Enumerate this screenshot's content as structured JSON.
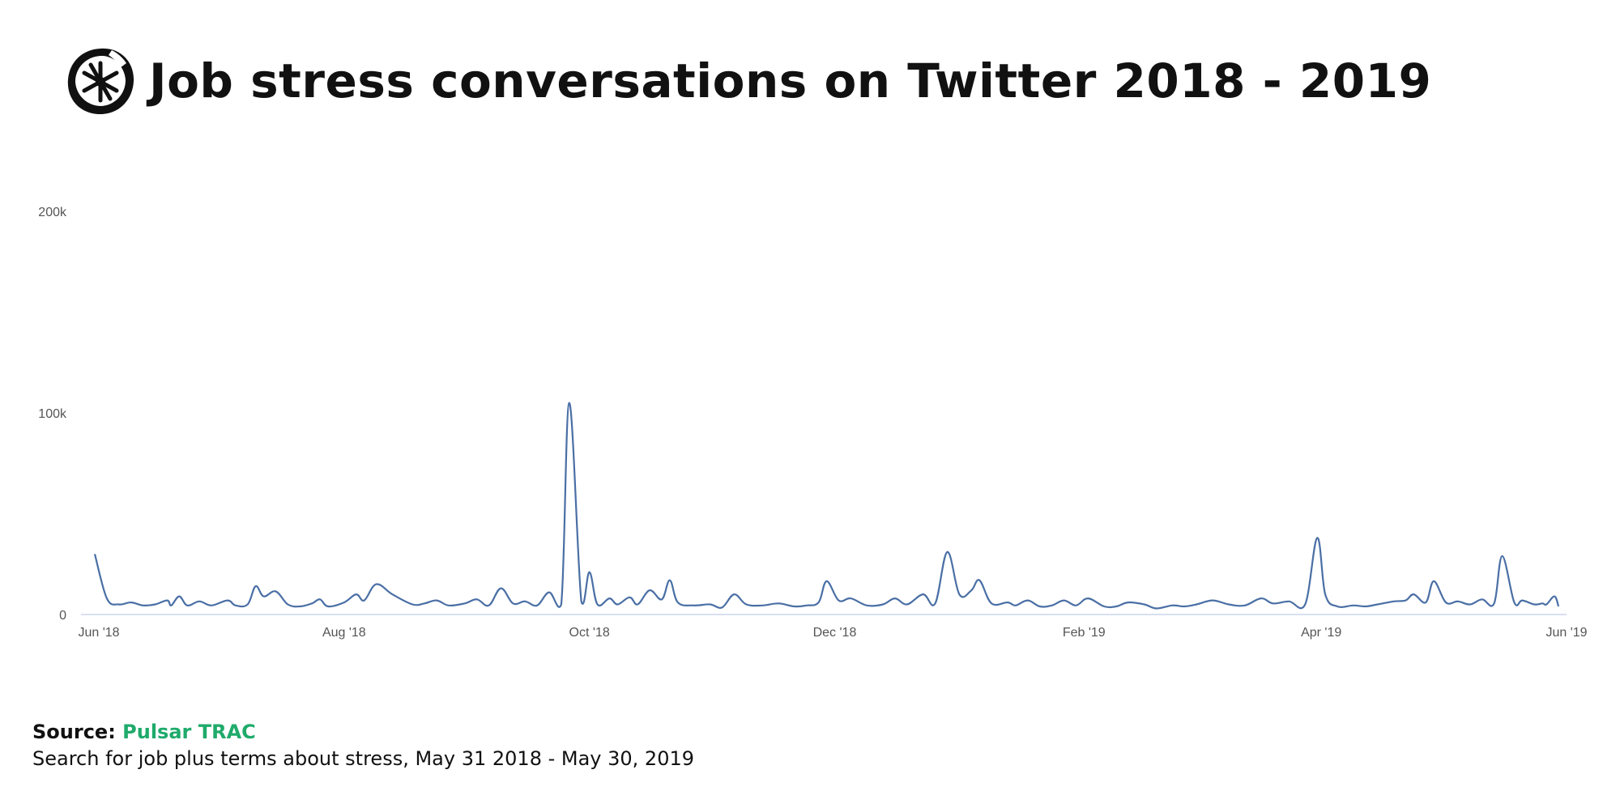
{
  "header": {
    "title": "Job stress conversations on Twitter 2018 - 2019",
    "logo_icon": "asterisk-circle-logo-icon"
  },
  "chart_data": {
    "type": "line",
    "title": "Job stress conversations on Twitter 2018 - 2019",
    "xlabel": "",
    "ylabel": "",
    "y_ticks": [
      "0",
      "100k",
      "200k"
    ],
    "x_ticks": [
      "Jun '18",
      "Aug '18",
      "Oct '18",
      "Dec '18",
      "Feb '19",
      "Apr '19",
      "Jun '19"
    ],
    "x_tick_dates": [
      "2018-06-01",
      "2018-08-01",
      "2018-10-01",
      "2018-12-01",
      "2019-02-01",
      "2019-04-01",
      "2019-06-01"
    ],
    "ylim": [
      0,
      200000
    ],
    "xlim": [
      "2018-06-01",
      "2019-06-01"
    ],
    "grid": false,
    "series_color": "#4a6fa5",
    "series": [
      {
        "name": "",
        "points": [
          [
            "2018-05-31",
            30000
          ],
          [
            "2018-06-03",
            8000
          ],
          [
            "2018-06-06",
            5000
          ],
          [
            "2018-06-09",
            6000
          ],
          [
            "2018-06-12",
            4500
          ],
          [
            "2018-06-15",
            5000
          ],
          [
            "2018-06-18",
            7000
          ],
          [
            "2018-06-19",
            4500
          ],
          [
            "2018-06-21",
            9000
          ],
          [
            "2018-06-23",
            4500
          ],
          [
            "2018-06-26",
            6500
          ],
          [
            "2018-06-29",
            4500
          ],
          [
            "2018-07-03",
            7000
          ],
          [
            "2018-07-05",
            4500
          ],
          [
            "2018-07-08",
            5000
          ],
          [
            "2018-07-10",
            14000
          ],
          [
            "2018-07-12",
            9000
          ],
          [
            "2018-07-15",
            11500
          ],
          [
            "2018-07-18",
            5000
          ],
          [
            "2018-07-21",
            4000
          ],
          [
            "2018-07-24",
            5500
          ],
          [
            "2018-07-26",
            7500
          ],
          [
            "2018-07-28",
            4000
          ],
          [
            "2018-08-01",
            6000
          ],
          [
            "2018-08-04",
            10000
          ],
          [
            "2018-08-06",
            7000
          ],
          [
            "2018-08-09",
            15000
          ],
          [
            "2018-08-13",
            10000
          ],
          [
            "2018-08-18",
            5000
          ],
          [
            "2018-08-21",
            5500
          ],
          [
            "2018-08-24",
            7000
          ],
          [
            "2018-08-27",
            4500
          ],
          [
            "2018-08-31",
            5500
          ],
          [
            "2018-09-03",
            7500
          ],
          [
            "2018-09-06",
            4500
          ],
          [
            "2018-09-09",
            13000
          ],
          [
            "2018-09-12",
            5500
          ],
          [
            "2018-09-15",
            6500
          ],
          [
            "2018-09-18",
            4500
          ],
          [
            "2018-09-21",
            11000
          ],
          [
            "2018-09-24",
            5000
          ],
          [
            "2018-09-26",
            105000
          ],
          [
            "2018-09-29",
            6500
          ],
          [
            "2018-10-01",
            21000
          ],
          [
            "2018-10-03",
            5000
          ],
          [
            "2018-10-06",
            8000
          ],
          [
            "2018-10-08",
            5000
          ],
          [
            "2018-10-11",
            8500
          ],
          [
            "2018-10-13",
            5000
          ],
          [
            "2018-10-16",
            12000
          ],
          [
            "2018-10-19",
            7500
          ],
          [
            "2018-10-21",
            17000
          ],
          [
            "2018-10-23",
            6000
          ],
          [
            "2018-10-27",
            4500
          ],
          [
            "2018-10-31",
            5000
          ],
          [
            "2018-11-03",
            3500
          ],
          [
            "2018-11-06",
            10000
          ],
          [
            "2018-11-09",
            5000
          ],
          [
            "2018-11-13",
            4500
          ],
          [
            "2018-11-17",
            5500
          ],
          [
            "2018-11-21",
            4000
          ],
          [
            "2018-11-24",
            4500
          ],
          [
            "2018-11-27",
            6000
          ],
          [
            "2018-11-29",
            16500
          ],
          [
            "2018-12-02",
            7000
          ],
          [
            "2018-12-05",
            8000
          ],
          [
            "2018-12-09",
            4500
          ],
          [
            "2018-12-13",
            5000
          ],
          [
            "2018-12-16",
            8000
          ],
          [
            "2018-12-19",
            5000
          ],
          [
            "2018-12-23",
            10000
          ],
          [
            "2018-12-26",
            5500
          ],
          [
            "2018-12-29",
            31000
          ],
          [
            "2019-01-01",
            10000
          ],
          [
            "2019-01-04",
            12000
          ],
          [
            "2019-01-06",
            17000
          ],
          [
            "2019-01-09",
            5500
          ],
          [
            "2019-01-13",
            6000
          ],
          [
            "2019-01-15",
            4500
          ],
          [
            "2019-01-18",
            7000
          ],
          [
            "2019-01-21",
            4000
          ],
          [
            "2019-01-24",
            4500
          ],
          [
            "2019-01-27",
            7000
          ],
          [
            "2019-01-30",
            4500
          ],
          [
            "2019-02-02",
            8000
          ],
          [
            "2019-02-06",
            4000
          ],
          [
            "2019-02-09",
            4000
          ],
          [
            "2019-02-12",
            6000
          ],
          [
            "2019-02-16",
            5000
          ],
          [
            "2019-02-19",
            3000
          ],
          [
            "2019-02-23",
            4500
          ],
          [
            "2019-02-26",
            4000
          ],
          [
            "2019-03-01",
            5000
          ],
          [
            "2019-03-05",
            7000
          ],
          [
            "2019-03-09",
            5000
          ],
          [
            "2019-03-13",
            4500
          ],
          [
            "2019-03-17",
            8000
          ],
          [
            "2019-03-20",
            5500
          ],
          [
            "2019-03-24",
            6500
          ],
          [
            "2019-03-28",
            5000
          ],
          [
            "2019-03-31",
            38000
          ],
          [
            "2019-04-02",
            10000
          ],
          [
            "2019-04-05",
            4000
          ],
          [
            "2019-04-09",
            4500
          ],
          [
            "2019-04-12",
            4000
          ],
          [
            "2019-04-15",
            5000
          ],
          [
            "2019-04-19",
            6500
          ],
          [
            "2019-04-22",
            7000
          ],
          [
            "2019-04-24",
            10000
          ],
          [
            "2019-04-27",
            6000
          ],
          [
            "2019-04-29",
            16500
          ],
          [
            "2019-05-02",
            6000
          ],
          [
            "2019-05-05",
            6500
          ],
          [
            "2019-05-08",
            5000
          ],
          [
            "2019-05-11",
            7500
          ],
          [
            "2019-05-14",
            5500
          ],
          [
            "2019-05-16",
            29000
          ],
          [
            "2019-05-19",
            6000
          ],
          [
            "2019-05-21",
            7000
          ],
          [
            "2019-05-24",
            5000
          ],
          [
            "2019-05-26",
            5500
          ],
          [
            "2019-05-27",
            5000
          ],
          [
            "2019-05-29",
            9000
          ],
          [
            "2019-05-30",
            4000
          ]
        ]
      }
    ]
  },
  "footer": {
    "source_label": "Source:",
    "source_name": "Pulsar TRAC",
    "description": "Search for job plus terms about stress, May 31 2018 - May 30, 2019"
  }
}
